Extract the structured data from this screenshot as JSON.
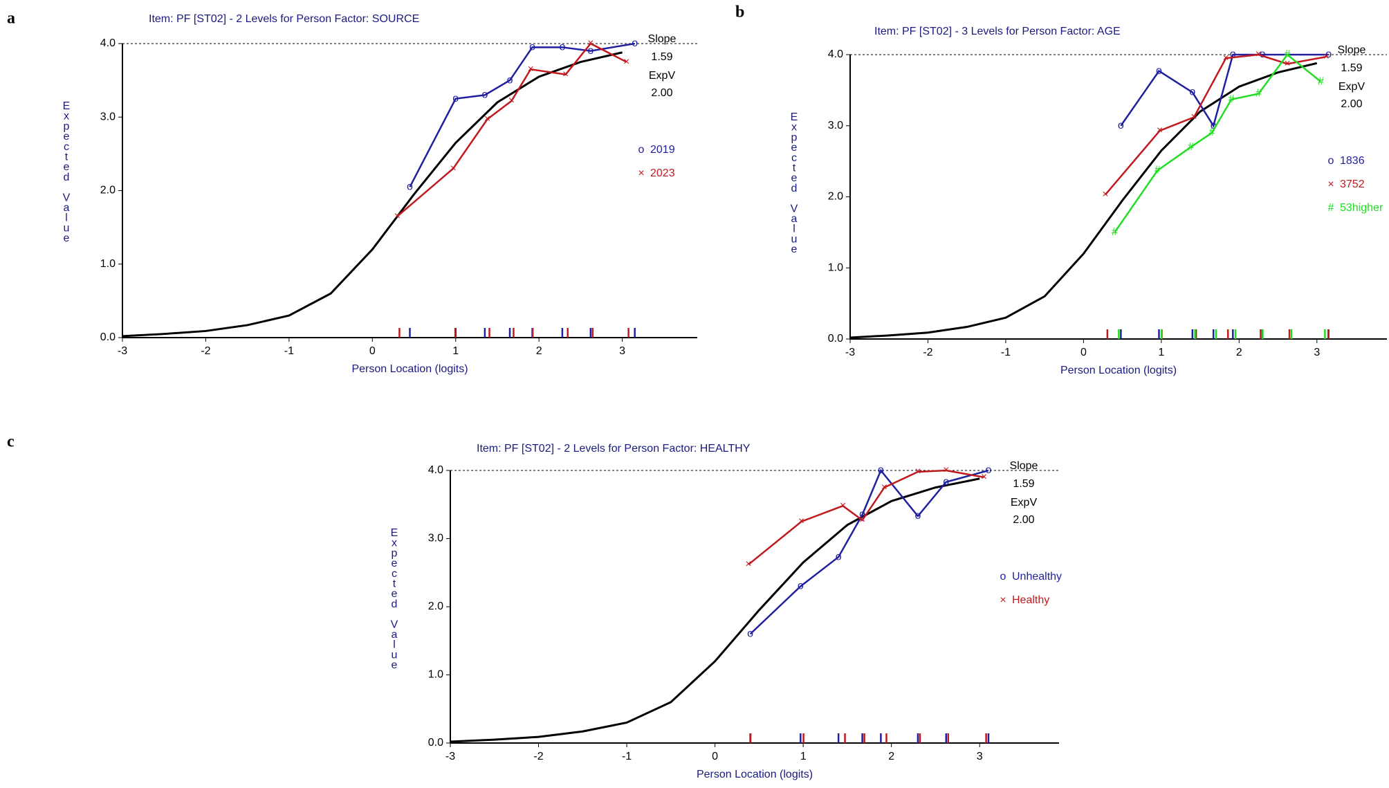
{
  "chart_data": [
    {
      "type": "line",
      "panel": "a",
      "title": "Item: PF [ST02] - 2 Levels for Person Factor: SOURCE",
      "x_label": "Person Location (logits)",
      "y_label": "Expected Value",
      "annotations": [
        "Slope",
        "1.59",
        "ExpV",
        "2.00"
      ],
      "xlim": [
        -3,
        3.9
      ],
      "ylim": [
        0,
        4
      ],
      "xticks": [
        -3,
        -2,
        -1,
        0,
        1,
        2,
        3
      ],
      "yticks": [
        {
          "value": 0,
          "label": "0.0"
        },
        {
          "value": 1,
          "label": "1.0"
        },
        {
          "value": 2,
          "label": "2.0"
        },
        {
          "value": 3,
          "label": "3.0"
        },
        {
          "value": 4,
          "label": "4.0"
        }
      ],
      "curve": {
        "color": "#000000",
        "x": [
          -3,
          -2.5,
          -2,
          -1.5,
          -1,
          -0.5,
          0,
          0.5,
          1,
          1.5,
          2,
          2.5,
          3
        ],
        "values": [
          0.02,
          0.05,
          0.09,
          0.17,
          0.3,
          0.6,
          1.2,
          1.95,
          2.65,
          3.2,
          3.55,
          3.75,
          3.88
        ]
      },
      "series": [
        {
          "name": "2019",
          "marker": "o",
          "color": "#1f1fa0",
          "x": [
            0.45,
            1.0,
            1.35,
            1.65,
            1.92,
            2.28,
            2.62,
            3.15
          ],
          "values": [
            2.05,
            3.25,
            3.3,
            3.5,
            3.95,
            3.95,
            3.9,
            4.0
          ]
        },
        {
          "name": "2023",
          "marker": "×",
          "color": "#c0191e",
          "x": [
            0.3,
            0.97,
            1.38,
            1.67,
            1.9,
            2.32,
            2.62,
            3.05
          ],
          "values": [
            1.65,
            2.3,
            2.97,
            3.22,
            3.65,
            3.58,
            4.0,
            3.75
          ]
        }
      ]
    },
    {
      "type": "line",
      "panel": "b",
      "title": "Item: PF [ST02] - 3 Levels for Person Factor: AGE",
      "x_label": "Person Location (logits)",
      "y_label": "Expected Value",
      "annotations": [
        "Slope",
        "1.59",
        "ExpV",
        "2.00"
      ],
      "xlim": [
        -3,
        3.9
      ],
      "ylim": [
        0,
        4
      ],
      "xticks": [
        -3,
        -2,
        -1,
        0,
        1,
        2,
        3
      ],
      "yticks": [
        {
          "value": 0,
          "label": "0.0"
        },
        {
          "value": 1,
          "label": "1.0"
        },
        {
          "value": 2,
          "label": "2.0"
        },
        {
          "value": 3,
          "label": "3.0"
        },
        {
          "value": 4,
          "label": "4.0"
        }
      ],
      "curve": {
        "color": "#000000",
        "x": [
          -3,
          -2.5,
          -2,
          -1.5,
          -1,
          -0.5,
          0,
          0.5,
          1,
          1.5,
          2,
          2.5,
          3
        ],
        "values": [
          0.02,
          0.05,
          0.09,
          0.17,
          0.3,
          0.6,
          1.2,
          1.95,
          2.65,
          3.2,
          3.55,
          3.75,
          3.88
        ]
      },
      "series": [
        {
          "name": "1836",
          "marker": "o",
          "color": "#1f1fa0",
          "x": [
            0.48,
            0.97,
            1.4,
            1.67,
            1.92,
            2.3,
            3.15
          ],
          "values": [
            3.0,
            3.77,
            3.47,
            3.0,
            4.0,
            4.0,
            4.0
          ]
        },
        {
          "name": "3752",
          "marker": "×",
          "color": "#c0191e",
          "x": [
            0.28,
            0.98,
            1.42,
            1.83,
            2.25,
            2.62,
            3.12
          ],
          "values": [
            2.03,
            2.93,
            3.12,
            3.95,
            4.0,
            3.87,
            3.97
          ]
        },
        {
          "name": "53higher",
          "marker": "#",
          "color": "#22dd22",
          "x": [
            0.4,
            0.95,
            1.38,
            1.65,
            1.9,
            2.25,
            2.62,
            3.05
          ],
          "values": [
            1.5,
            2.37,
            2.7,
            2.9,
            3.37,
            3.45,
            4.0,
            3.62
          ]
        }
      ]
    },
    {
      "type": "line",
      "panel": "c",
      "title": "Item: PF [ST02] - 2 Levels for Person Factor: HEALTHY",
      "x_label": "Person Location (logits)",
      "y_label": "Expected Value",
      "annotations": [
        "Slope",
        "1.59",
        "ExpV",
        "2.00"
      ],
      "xlim": [
        -3,
        3.9
      ],
      "ylim": [
        0,
        4
      ],
      "xticks": [
        -3,
        -2,
        -1,
        0,
        1,
        2,
        3
      ],
      "yticks": [
        {
          "value": 0,
          "label": "0.0"
        },
        {
          "value": 1,
          "label": "1.0"
        },
        {
          "value": 2,
          "label": "2.0"
        },
        {
          "value": 3,
          "label": "3.0"
        },
        {
          "value": 4,
          "label": "4.0"
        }
      ],
      "curve": {
        "color": "#000000",
        "x": [
          -3,
          -2.5,
          -2,
          -1.5,
          -1,
          -0.5,
          0,
          0.5,
          1,
          1.5,
          2,
          2.5,
          3
        ],
        "values": [
          0.02,
          0.05,
          0.09,
          0.17,
          0.3,
          0.6,
          1.2,
          1.95,
          2.65,
          3.2,
          3.55,
          3.75,
          3.88
        ]
      },
      "series": [
        {
          "name": "Unhealthy",
          "marker": "o",
          "color": "#1f1fa0",
          "x": [
            0.4,
            0.97,
            1.4,
            1.67,
            1.88,
            2.3,
            2.62,
            3.1
          ],
          "values": [
            1.6,
            2.3,
            2.73,
            3.35,
            4.0,
            3.33,
            3.83,
            4.0
          ]
        },
        {
          "name": "Healthy",
          "marker": "×",
          "color": "#c0191e",
          "x": [
            0.38,
            0.98,
            1.45,
            1.67,
            1.92,
            2.3,
            2.62,
            3.05
          ],
          "values": [
            2.62,
            3.25,
            3.48,
            3.27,
            3.75,
            3.98,
            4.0,
            3.9
          ]
        }
      ]
    }
  ]
}
